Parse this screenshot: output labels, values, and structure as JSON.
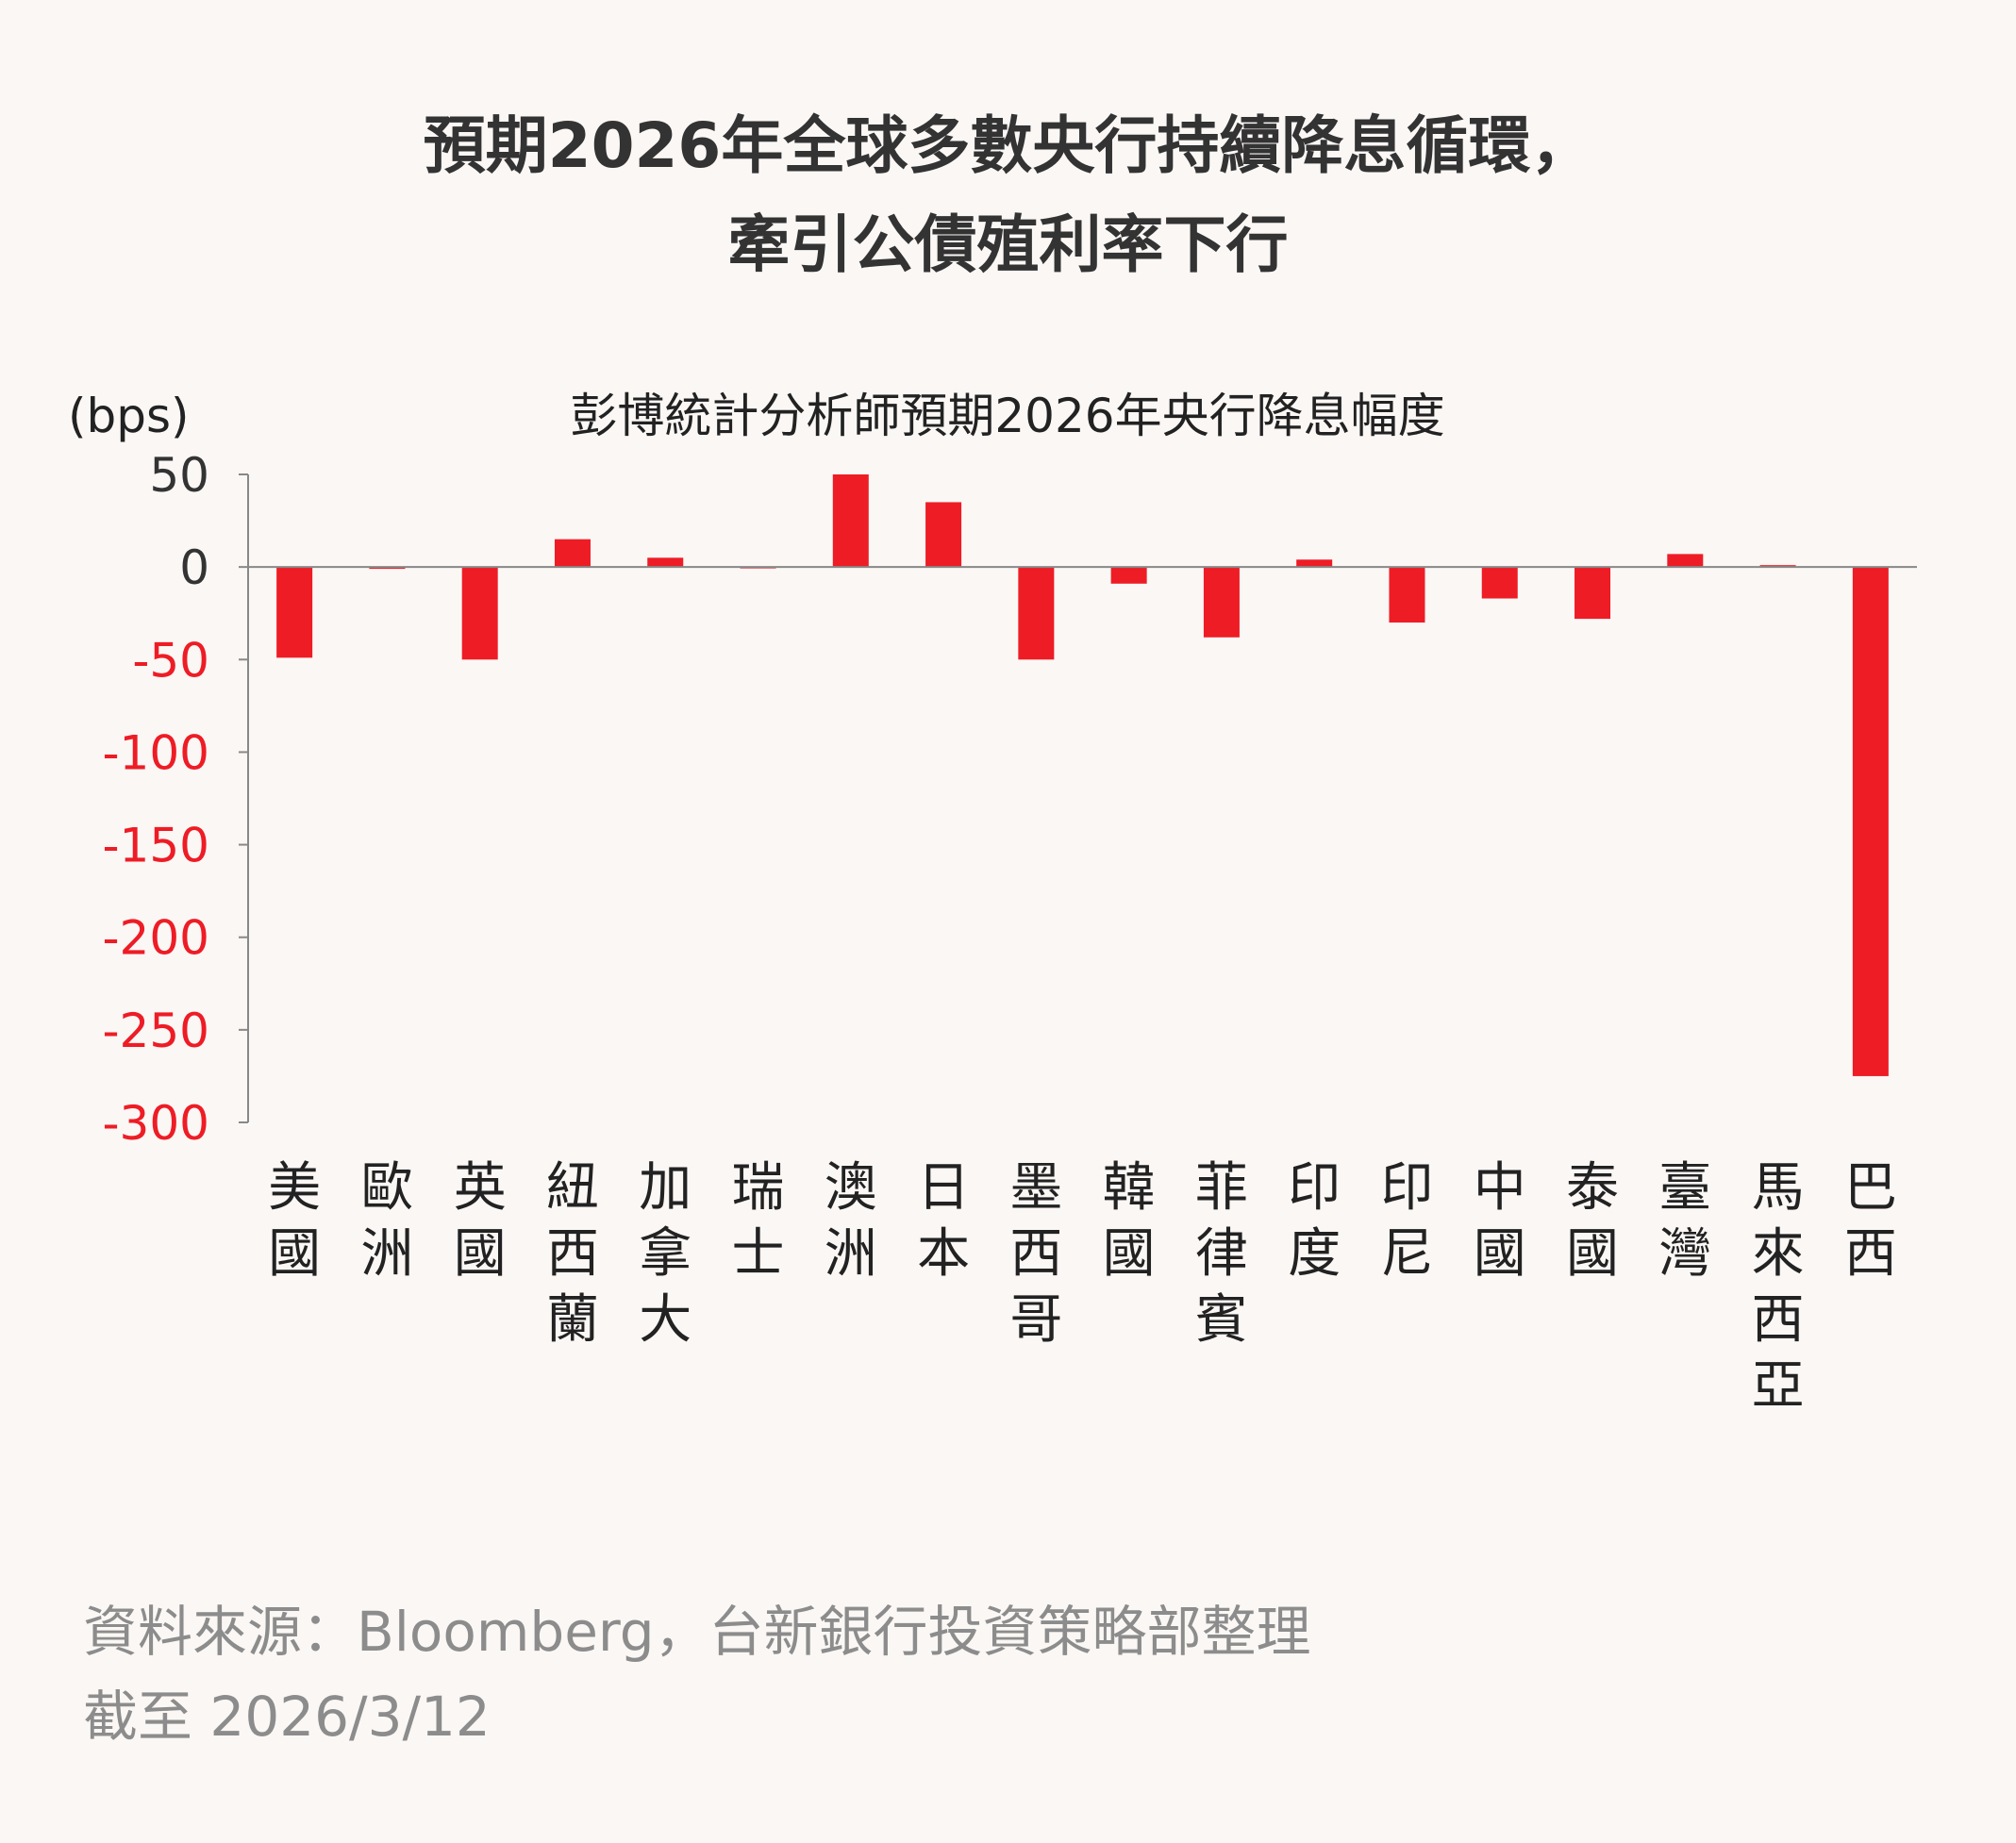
{
  "title_line1": "預期2026年全球多數央行持續降息循環，",
  "title_line2": "牽引公債殖利率下行",
  "colors": {
    "bar": "#ee1c25",
    "negative_tick": "#ee1c25",
    "positive_tick": "#333333",
    "axis": "#888888",
    "background": "#fbf7f5"
  },
  "chart_data": {
    "type": "bar",
    "title": "彭博統計分析師預期2026年央行降息幅度",
    "unit_label": "(bps)",
    "categories": [
      "美國",
      "歐洲",
      "英國",
      "紐西蘭",
      "加拿大",
      "瑞士",
      "澳洲",
      "日本",
      "墨西哥",
      "韓國",
      "菲律賓",
      "印度",
      "印尼",
      "中國",
      "泰國",
      "臺灣",
      "馬來西亞",
      "巴西"
    ],
    "values": [
      -49,
      -1,
      -50,
      15,
      5,
      0,
      50,
      35,
      -50,
      -9,
      -38,
      4,
      -30,
      -17,
      -28,
      7,
      1,
      -275
    ],
    "ylim": [
      -300,
      50
    ],
    "yticks": [
      50,
      0,
      -50,
      -100,
      -150,
      -200,
      -250,
      -300
    ],
    "ytick_labels": [
      "50",
      "0",
      "-50",
      "-100",
      "-150",
      "-200",
      "-250",
      "-300"
    ],
    "grid": false,
    "legend": "none"
  },
  "footer": {
    "source": "資料來源：Bloomberg，台新銀行投資策略部整理",
    "date": "截至 2026/3/12"
  }
}
